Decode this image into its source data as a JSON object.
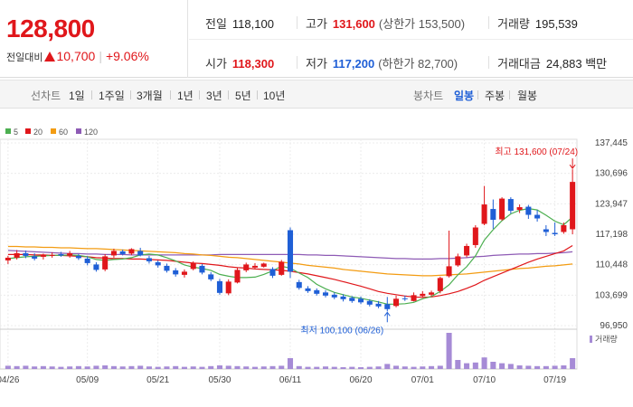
{
  "header": {
    "price": "128,800",
    "change_label": "전일대비",
    "change_value": "10,700",
    "change_rate": "+9.06%",
    "rows": [
      [
        {
          "key": "전일",
          "value": "118,100",
          "color": "plain"
        },
        {
          "key": "고가",
          "value": "131,600",
          "color": "red",
          "sub": "(상한가 153,500)"
        },
        {
          "key": "거래량",
          "value": "195,539",
          "color": "plain"
        }
      ],
      [
        {
          "key": "시가",
          "value": "118,300",
          "color": "red"
        },
        {
          "key": "저가",
          "value": "117,200",
          "color": "blue",
          "sub": "(하한가 82,700)"
        },
        {
          "key": "거래대금",
          "value": "24,883 백만",
          "color": "plain"
        }
      ]
    ]
  },
  "periodbar": {
    "line_label": "선차트",
    "line_items": [
      "1일",
      "1주일",
      "3개월",
      "1년",
      "3년",
      "5년",
      "10년"
    ],
    "candle_label": "봉차트",
    "candle_items": [
      "일봉",
      "주봉",
      "월봉"
    ],
    "active_candle": "일봉"
  },
  "chart_data": {
    "type": "candlestick",
    "legend": [
      {
        "name": "5",
        "color": "#4caf50"
      },
      {
        "name": "20",
        "color": "#e0171b"
      },
      {
        "name": "60",
        "color": "#f39c12"
      },
      {
        "name": "120",
        "color": "#8e5bb5"
      }
    ],
    "y_ticks": [
      "137,445",
      "130,696",
      "123,947",
      "117,198",
      "110,448",
      "103,699",
      "96,950"
    ],
    "ylim": [
      96950,
      137445
    ],
    "x_ticks": [
      "04/26",
      "05/09",
      "05/21",
      "05/30",
      "06/11",
      "06/20",
      "07/01",
      "07/10",
      "07/19"
    ],
    "x_tick_index": [
      0,
      9,
      17,
      24,
      32,
      40,
      47,
      54,
      62
    ],
    "annotation_high": "최고 131,600 (07/24)",
    "annotation_low": "최저 100,100 (06/26)",
    "volume_label": "거래량",
    "candles": [
      [
        111400,
        112400,
        110600,
        112000
      ],
      [
        112000,
        113700,
        111600,
        113000
      ],
      [
        113000,
        113600,
        111900,
        112400
      ],
      [
        112300,
        113000,
        111400,
        111800
      ],
      [
        112200,
        112900,
        111600,
        112600
      ],
      [
        112600,
        113200,
        112000,
        112600
      ],
      [
        112800,
        113300,
        112200,
        112500
      ],
      [
        112500,
        113500,
        112000,
        113000
      ],
      [
        112400,
        112800,
        111500,
        111900
      ],
      [
        111800,
        112300,
        110300,
        110800
      ],
      [
        110500,
        111000,
        108900,
        109300
      ],
      [
        109400,
        112800,
        109000,
        112300
      ],
      [
        112500,
        114000,
        112000,
        113500
      ],
      [
        113400,
        113800,
        112500,
        112800
      ],
      [
        112900,
        114100,
        112600,
        113900
      ],
      [
        113500,
        114200,
        112300,
        112500
      ],
      [
        111900,
        112400,
        110700,
        111200
      ],
      [
        111000,
        111400,
        109800,
        110300
      ],
      [
        110200,
        110700,
        108700,
        109100
      ],
      [
        109200,
        109700,
        107800,
        108300
      ],
      [
        108200,
        109400,
        107600,
        108900
      ],
      [
        109500,
        111200,
        109200,
        110800
      ],
      [
        110200,
        110600,
        108300,
        108700
      ],
      [
        108300,
        108800,
        106800,
        107200
      ],
      [
        106800,
        107300,
        103800,
        104200
      ],
      [
        104100,
        107200,
        103700,
        106700
      ],
      [
        106500,
        109700,
        106300,
        109300
      ],
      [
        109200,
        110900,
        108800,
        110500
      ],
      [
        109800,
        110800,
        109400,
        110200
      ],
      [
        110000,
        110900,
        109800,
        110700
      ],
      [
        109500,
        109900,
        107500,
        108000
      ],
      [
        108200,
        111500,
        108000,
        111100
      ],
      [
        118100,
        118700,
        107500,
        108900
      ],
      [
        106600,
        107100,
        104900,
        105300
      ],
      [
        105200,
        105700,
        104200,
        104600
      ],
      [
        104800,
        105200,
        103600,
        104000
      ],
      [
        104300,
        104800,
        103200,
        103600
      ],
      [
        103800,
        104300,
        102800,
        103200
      ],
      [
        103400,
        103900,
        102300,
        102800
      ],
      [
        103100,
        103500,
        102000,
        102400
      ],
      [
        102900,
        103400,
        101700,
        102100
      ],
      [
        102400,
        102800,
        101200,
        101600
      ],
      [
        101800,
        102400,
        100800,
        101200
      ],
      [
        101700,
        103300,
        100100,
        100600
      ],
      [
        101300,
        103600,
        101000,
        102900
      ],
      [
        103000,
        103600,
        102400,
        102900
      ],
      [
        102400,
        104300,
        102300,
        103700
      ],
      [
        103500,
        104600,
        103200,
        104000
      ],
      [
        103800,
        104700,
        103400,
        104300
      ],
      [
        104600,
        107800,
        104100,
        107500
      ],
      [
        107900,
        118000,
        107600,
        110100
      ],
      [
        110300,
        112900,
        110000,
        112300
      ],
      [
        112500,
        115100,
        112100,
        114600
      ],
      [
        114800,
        119200,
        114200,
        118700
      ],
      [
        119500,
        127900,
        119200,
        123800
      ],
      [
        122800,
        124900,
        118400,
        120400
      ],
      [
        120500,
        125400,
        120200,
        125100
      ],
      [
        125000,
        125400,
        121800,
        122400
      ],
      [
        122600,
        123800,
        121900,
        123200
      ],
      [
        123300,
        123700,
        120600,
        121500
      ],
      [
        121500,
        122600,
        120000,
        120700
      ],
      [
        118300,
        119200,
        116800,
        117700
      ],
      [
        117500,
        119800,
        116800,
        117200
      ],
      [
        117700,
        119800,
        117300,
        119200
      ],
      [
        118300,
        131600,
        117200,
        128800
      ]
    ],
    "ma5": [
      111800,
      112000,
      112200,
      112300,
      112400,
      112500,
      112500,
      112600,
      112500,
      112200,
      111600,
      111400,
      111600,
      111700,
      112000,
      112600,
      112800,
      112600,
      112000,
      111300,
      110400,
      109900,
      109600,
      109200,
      108300,
      107900,
      107600,
      107600,
      107700,
      108300,
      109100,
      110100,
      109700,
      108600,
      107600,
      106100,
      105100,
      104300,
      103800,
      103300,
      103000,
      102600,
      102200,
      101700,
      101700,
      101800,
      102100,
      102900,
      103400,
      104500,
      106000,
      108200,
      110000,
      112400,
      115900,
      118200,
      120200,
      121700,
      122500,
      122900,
      122600,
      121400,
      120100,
      119300,
      121000
    ],
    "ma20": [
      112700,
      112700,
      112700,
      112600,
      112600,
      112500,
      112500,
      112400,
      112300,
      112200,
      112000,
      111900,
      111800,
      111800,
      111700,
      111700,
      111600,
      111500,
      111400,
      111200,
      111000,
      110800,
      110700,
      110500,
      110300,
      110000,
      109800,
      109700,
      109500,
      109400,
      109300,
      109200,
      109000,
      108700,
      108400,
      108000,
      107600,
      107200,
      106700,
      106200,
      105700,
      105100,
      104500,
      104100,
      103800,
      103500,
      103300,
      103200,
      103300,
      103600,
      104000,
      104500,
      105200,
      106000,
      107000,
      107800,
      108600,
      109400,
      110200,
      111000,
      111700,
      112300,
      112900,
      113500,
      114700
    ],
    "ma60": [
      114500,
      114500,
      114400,
      114400,
      114300,
      114300,
      114200,
      114200,
      114100,
      114000,
      114000,
      113900,
      113800,
      113700,
      113600,
      113500,
      113400,
      113300,
      113200,
      113100,
      112900,
      112800,
      112600,
      112500,
      112300,
      112100,
      112000,
      111800,
      111600,
      111400,
      111200,
      111000,
      110800,
      110600,
      110300,
      110100,
      109900,
      109700,
      109400,
      109200,
      109000,
      108800,
      108600,
      108400,
      108300,
      108200,
      108100,
      108000,
      108000,
      108100,
      108200,
      108300,
      108400,
      108600,
      108800,
      109000,
      109200,
      109400,
      109600,
      109700,
      109900,
      110100,
      110200,
      110400,
      110600
    ],
    "ma120": [
      113600,
      113500,
      113400,
      113300,
      113200,
      113100,
      113000,
      112900,
      112900,
      112800,
      112800,
      112700,
      112700,
      112700,
      112600,
      112600,
      112600,
      112600,
      112600,
      112600,
      112600,
      112600,
      112600,
      112600,
      112700,
      112700,
      112700,
      112700,
      112700,
      112700,
      112700,
      112700,
      112700,
      112700,
      112600,
      112600,
      112500,
      112500,
      112400,
      112300,
      112200,
      112100,
      112000,
      111900,
      111800,
      111800,
      111700,
      111700,
      111700,
      111800,
      111800,
      111900,
      112000,
      112200,
      112300,
      112500,
      112600,
      112700,
      112800,
      112800,
      112900,
      112900,
      113000,
      113100,
      113300
    ],
    "volume": [
      9,
      8,
      9,
      7,
      8,
      7,
      6,
      7,
      8,
      7,
      9,
      10,
      8,
      7,
      8,
      9,
      7,
      6,
      7,
      8,
      6,
      7,
      6,
      8,
      10,
      9,
      8,
      7,
      6,
      7,
      8,
      9,
      30,
      8,
      6,
      6,
      7,
      6,
      5,
      6,
      5,
      6,
      7,
      14,
      9,
      7,
      6,
      7,
      8,
      9,
      100,
      25,
      16,
      18,
      32,
      20,
      16,
      14,
      10,
      9,
      8,
      8,
      9,
      10,
      30
    ]
  }
}
